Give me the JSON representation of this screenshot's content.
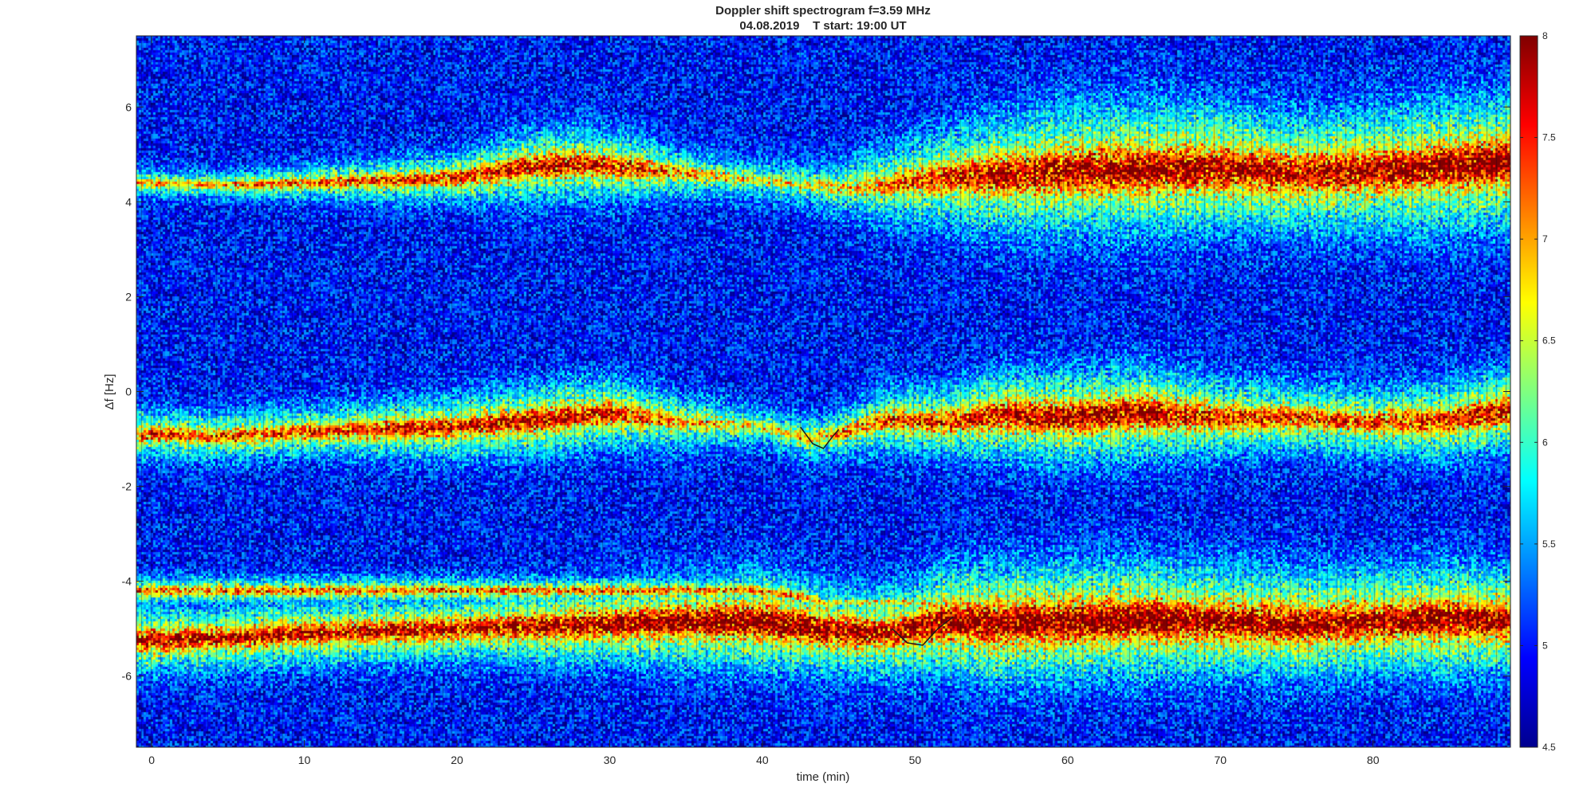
{
  "chart_data": {
    "type": "heatmap",
    "title": "Doppler shift spectrogram f=3.59 MHz",
    "subtitle": "04.08.2019    T start: 19:00 UT",
    "xlabel": "time (min)",
    "ylabel": "Δf [Hz]",
    "xlim": [
      -1,
      89
    ],
    "ylim": [
      -7.5,
      7.5
    ],
    "x_ticks": [
      0,
      10,
      20,
      30,
      40,
      50,
      60,
      70,
      80
    ],
    "x_tick_labels": [
      "0",
      "10",
      "20",
      "30",
      "40",
      "50",
      "60",
      "70",
      "80"
    ],
    "y_ticks": [
      -6,
      -4,
      -2,
      0,
      2,
      4,
      6
    ],
    "y_tick_labels": [
      "-6",
      "-4",
      "-2",
      "0",
      "2",
      "4",
      "6"
    ],
    "colorbar": {
      "colormap": "jet",
      "range": [
        4.5,
        8
      ],
      "ticks": [
        4.5,
        5,
        5.5,
        6,
        6.5,
        7,
        7.5,
        8
      ],
      "tick_labels": [
        "4.5",
        "5",
        "5.5",
        "6",
        "6.5",
        "7",
        "7.5",
        "8"
      ]
    },
    "background_level": 5.0,
    "series": [
      {
        "x": [
          -1,
          5,
          10,
          15,
          20,
          25,
          28,
          32,
          35,
          40,
          45,
          48,
          52,
          55,
          60,
          65,
          70,
          75,
          80,
          85,
          89
        ],
        "y": [
          4.4,
          4.35,
          4.4,
          4.45,
          4.5,
          4.75,
          4.8,
          4.7,
          4.6,
          4.45,
          4.3,
          4.35,
          4.5,
          4.55,
          4.65,
          4.7,
          4.7,
          4.6,
          4.65,
          4.75,
          4.85
        ],
        "width": [
          0.2,
          0.2,
          0.25,
          0.3,
          0.35,
          0.5,
          0.5,
          0.45,
          0.35,
          0.3,
          0.4,
          0.55,
          0.7,
          0.8,
          0.9,
          0.9,
          0.85,
          0.8,
          0.85,
          0.9,
          0.9
        ],
        "intensity": [
          6.6,
          6.6,
          6.8,
          6.9,
          7.0,
          7.2,
          7.2,
          7.0,
          6.6,
          6.3,
          6.4,
          6.7,
          7.0,
          7.2,
          7.3,
          7.4,
          7.4,
          7.3,
          7.3,
          7.4,
          7.5
        ]
      },
      {
        "x": [
          -1,
          5,
          10,
          15,
          20,
          25,
          30,
          35,
          40,
          43,
          45,
          48,
          52,
          55,
          60,
          65,
          70,
          75,
          80,
          85,
          89
        ],
        "y": [
          -0.9,
          -0.95,
          -0.85,
          -0.8,
          -0.75,
          -0.6,
          -0.45,
          -0.65,
          -0.75,
          -1.0,
          -0.9,
          -0.6,
          -0.65,
          -0.5,
          -0.55,
          -0.45,
          -0.55,
          -0.55,
          -0.65,
          -0.6,
          -0.4
        ],
        "width": [
          0.35,
          0.35,
          0.35,
          0.4,
          0.45,
          0.5,
          0.5,
          0.4,
          0.3,
          0.35,
          0.35,
          0.45,
          0.5,
          0.6,
          0.65,
          0.65,
          0.55,
          0.5,
          0.5,
          0.55,
          0.55
        ],
        "intensity": [
          6.9,
          6.9,
          6.9,
          7.0,
          7.1,
          7.2,
          7.1,
          6.6,
          6.3,
          6.5,
          6.6,
          6.9,
          7.0,
          7.2,
          7.3,
          7.3,
          7.0,
          6.9,
          6.9,
          7.1,
          7.3
        ]
      },
      {
        "x": [
          -1,
          5,
          10,
          15,
          20,
          25,
          30,
          35,
          40,
          45,
          48,
          50,
          52,
          55,
          60,
          65,
          70,
          75,
          80,
          85,
          89
        ],
        "y": [
          -5.25,
          -5.2,
          -5.1,
          -5.05,
          -5.0,
          -4.95,
          -4.9,
          -4.85,
          -4.85,
          -5.05,
          -5.1,
          -5.0,
          -4.85,
          -4.9,
          -4.85,
          -4.8,
          -4.85,
          -4.9,
          -4.85,
          -4.8,
          -4.85
        ],
        "width": [
          0.45,
          0.45,
          0.45,
          0.45,
          0.45,
          0.5,
          0.55,
          0.6,
          0.65,
          0.6,
          0.6,
          0.65,
          0.75,
          0.8,
          0.8,
          0.8,
          0.75,
          0.75,
          0.7,
          0.75,
          0.7
        ],
        "intensity": [
          7.3,
          7.2,
          7.2,
          7.2,
          7.2,
          7.3,
          7.4,
          7.5,
          7.6,
          7.4,
          7.3,
          7.3,
          7.4,
          7.5,
          7.5,
          7.5,
          7.4,
          7.4,
          7.4,
          7.5,
          7.4
        ]
      },
      {
        "x": [
          39.5,
          41,
          43,
          44
        ],
        "y": [
          -4.2,
          -4.25,
          -4.35,
          -4.45
        ],
        "width": [
          0.2,
          0.2,
          0.2,
          0.15
        ],
        "intensity": [
          6.8,
          6.8,
          6.6,
          6.4
        ]
      }
    ],
    "traced_line": {
      "x": [
        42.5,
        43.3,
        44.0,
        44.6,
        45.0
      ],
      "y": [
        -0.75,
        -1.1,
        -1.2,
        -0.95,
        -0.8
      ]
    },
    "traced_line_2": {
      "x": [
        48.5,
        49.5,
        50.5,
        51.5,
        52.5
      ],
      "y": [
        -5.0,
        -5.3,
        -5.35,
        -5.0,
        -4.75
      ]
    }
  }
}
